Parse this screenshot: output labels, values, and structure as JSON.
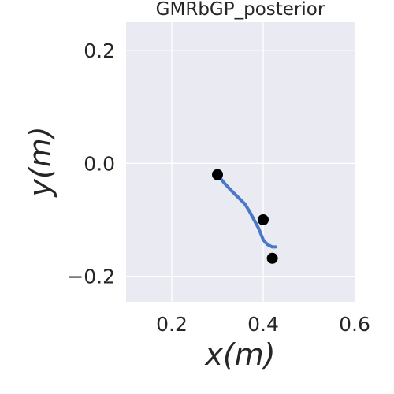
{
  "chart_data": {
    "type": "line",
    "title": "GMRbGP_posterior",
    "xlabel": "x(m)",
    "ylabel": "y(m)",
    "xlim": [
      0.1,
      0.6
    ],
    "ylim": [
      -0.245,
      0.25
    ],
    "xticks": [
      0.2,
      0.4,
      0.6
    ],
    "yticks": [
      0.2,
      0.0,
      -0.2
    ],
    "xtick_labels": [
      "0.2",
      "0.4",
      "0.6"
    ],
    "ytick_labels": [
      "0.2",
      "0.0",
      "−0.2"
    ],
    "grid": true,
    "background_color": "#eaeaf2",
    "grid_color": "#ffffff",
    "series": [
      {
        "type": "line",
        "color": "#4a78c8",
        "x": [
          0.3,
          0.315,
          0.33,
          0.345,
          0.36,
          0.37,
          0.38,
          0.39,
          0.395,
          0.4,
          0.405,
          0.41,
          0.42,
          0.427
        ],
        "y": [
          -0.02,
          -0.035,
          -0.048,
          -0.06,
          -0.072,
          -0.085,
          -0.1,
          -0.115,
          -0.125,
          -0.135,
          -0.14,
          -0.144,
          -0.148,
          -0.148
        ]
      },
      {
        "type": "scatter",
        "color": "#000000",
        "x": [
          0.3,
          0.4,
          0.42
        ],
        "y": [
          -0.02,
          -0.1,
          -0.168
        ]
      }
    ]
  }
}
